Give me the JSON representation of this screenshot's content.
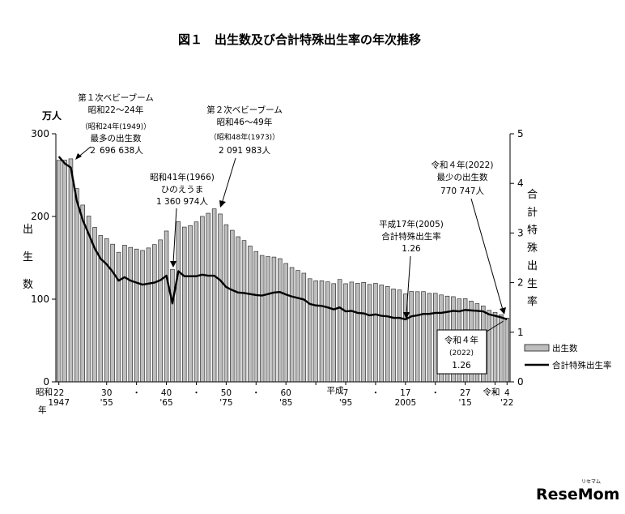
{
  "chart_data": {
    "type": "bar-line",
    "title": "図１　出生数及び合計特殊出生率の年次推移",
    "left_axis": {
      "unit": "万人",
      "label_chars": [
        "出",
        "生",
        "数"
      ],
      "range": [
        0,
        300
      ],
      "ticks": [
        0,
        100,
        200,
        300
      ]
    },
    "right_axis": {
      "label_chars": [
        "合",
        "計",
        "特",
        "殊",
        "出",
        "生",
        "率"
      ],
      "range": [
        0,
        5
      ],
      "ticks": [
        0,
        1,
        2,
        3,
        4,
        5
      ]
    },
    "x_axis": {
      "era_label": "昭和",
      "nen_label": "年",
      "heisei_label": "平成",
      "reiwa_label": "令和",
      "labels": [
        {
          "year": 1947,
          "top": "22",
          "bottom": "1947"
        },
        {
          "year": 1955,
          "top": "30",
          "bottom": "'55"
        },
        {
          "year": 1960,
          "top": "・",
          "bottom": ""
        },
        {
          "year": 1965,
          "top": "40",
          "bottom": "'65"
        },
        {
          "year": 1970,
          "top": "・",
          "bottom": ""
        },
        {
          "year": 1975,
          "top": "50",
          "bottom": "'75"
        },
        {
          "year": 1980,
          "top": "・",
          "bottom": ""
        },
        {
          "year": 1985,
          "top": "60",
          "bottom": "'85"
        },
        {
          "year": 1990,
          "top": "",
          "bottom": ""
        },
        {
          "year": 1995,
          "top": "7",
          "bottom": "'95"
        },
        {
          "year": 2000,
          "top": "・",
          "bottom": ""
        },
        {
          "year": 2005,
          "top": "17",
          "bottom": "2005"
        },
        {
          "year": 2010,
          "top": "・",
          "bottom": ""
        },
        {
          "year": 2015,
          "top": "27",
          "bottom": "'15"
        },
        {
          "year": 2020,
          "top": "・",
          "bottom": ""
        },
        {
          "year": 2022,
          "top": "4",
          "bottom": "'22"
        }
      ]
    },
    "years": [
      1947,
      1948,
      1949,
      1950,
      1951,
      1952,
      1953,
      1954,
      1955,
      1956,
      1957,
      1958,
      1959,
      1960,
      1961,
      1962,
      1963,
      1964,
      1965,
      1966,
      1967,
      1968,
      1969,
      1970,
      1971,
      1972,
      1973,
      1974,
      1975,
      1976,
      1977,
      1978,
      1979,
      1980,
      1981,
      1982,
      1983,
      1984,
      1985,
      1986,
      1987,
      1988,
      1989,
      1990,
      1991,
      1992,
      1993,
      1994,
      1995,
      1996,
      1997,
      1998,
      1999,
      2000,
      2001,
      2002,
      2003,
      2004,
      2005,
      2006,
      2007,
      2008,
      2009,
      2010,
      2011,
      2012,
      2013,
      2014,
      2015,
      2016,
      2017,
      2018,
      2019,
      2020,
      2021,
      2022
    ],
    "series": [
      {
        "name": "出生数",
        "axis": "left",
        "render": "bar",
        "values": [
          267.9,
          268.2,
          269.7,
          233.8,
          213.8,
          200.5,
          186.8,
          177.0,
          173.1,
          166.5,
          156.7,
          165.3,
          162.6,
          160.6,
          158.9,
          161.9,
          166.0,
          171.7,
          182.4,
          136.1,
          193.6,
          187.2,
          188.9,
          193.4,
          200.1,
          203.9,
          209.2,
          203.0,
          190.1,
          183.3,
          175.5,
          170.9,
          164.3,
          157.7,
          152.9,
          151.5,
          150.9,
          149.0,
          143.2,
          138.3,
          134.7,
          131.4,
          124.7,
          122.2,
          122.3,
          120.9,
          118.8,
          123.8,
          118.7,
          120.7,
          119.2,
          120.3,
          117.8,
          119.1,
          117.1,
          115.4,
          112.4,
          111.1,
          106.3,
          109.3,
          109.0,
          109.1,
          107.0,
          107.1,
          105.1,
          103.7,
          103.0,
          100.4,
          100.6,
          97.7,
          94.6,
          91.8,
          86.5,
          84.1,
          81.2,
          77.1
        ]
      },
      {
        "name": "合計特殊出生率",
        "axis": "right",
        "render": "line",
        "values": [
          4.54,
          4.4,
          4.32,
          3.65,
          3.26,
          2.98,
          2.69,
          2.48,
          2.37,
          2.22,
          2.04,
          2.11,
          2.04,
          2.0,
          1.96,
          1.98,
          2.0,
          2.05,
          2.14,
          1.58,
          2.23,
          2.13,
          2.13,
          2.13,
          2.16,
          2.14,
          2.14,
          2.05,
          1.91,
          1.85,
          1.8,
          1.79,
          1.77,
          1.75,
          1.74,
          1.77,
          1.8,
          1.81,
          1.76,
          1.72,
          1.69,
          1.66,
          1.57,
          1.54,
          1.53,
          1.5,
          1.46,
          1.5,
          1.42,
          1.43,
          1.39,
          1.38,
          1.34,
          1.36,
          1.33,
          1.32,
          1.29,
          1.29,
          1.26,
          1.32,
          1.34,
          1.37,
          1.37,
          1.39,
          1.39,
          1.41,
          1.43,
          1.42,
          1.45,
          1.44,
          1.43,
          1.42,
          1.36,
          1.33,
          1.3,
          1.26
        ]
      }
    ],
    "annotations": {
      "baby_boom_1": {
        "lines": [
          "第１次ベビーブーム",
          "昭和22～24年",
          "（昭和24年(1949)）",
          "最多の出生数",
          "２ 696 638人"
        ]
      },
      "hinoeuma": {
        "lines": [
          "昭和41年(1966)",
          "ひのえうま",
          "1 360 974人"
        ]
      },
      "baby_boom_2": {
        "lines": [
          "第２次ベビーブーム",
          "昭和46～49年",
          "（昭和48年(1973)）",
          "2 091 983人"
        ]
      },
      "h17": {
        "lines": [
          "平成17年(2005)",
          "合計特殊出生率",
          "1.26"
        ]
      },
      "r4_births": {
        "lines": [
          "令和４年(2022)",
          "最少の出生数",
          "770 747人"
        ]
      },
      "r4_tfr_box": {
        "lines": [
          "令和４年",
          "(2022)",
          "1.26"
        ]
      }
    },
    "legend": {
      "position": "bottom-right",
      "items": [
        {
          "label": "出生数",
          "kind": "bar"
        },
        {
          "label": "合計特殊出生率",
          "kind": "line"
        }
      ]
    },
    "colors": {
      "bar_fill": "#bdbdbd",
      "bar_stroke": "#1a1a1a",
      "line": "#000000"
    }
  },
  "watermark": {
    "text": "ReseMom",
    "small": "リセマム"
  }
}
